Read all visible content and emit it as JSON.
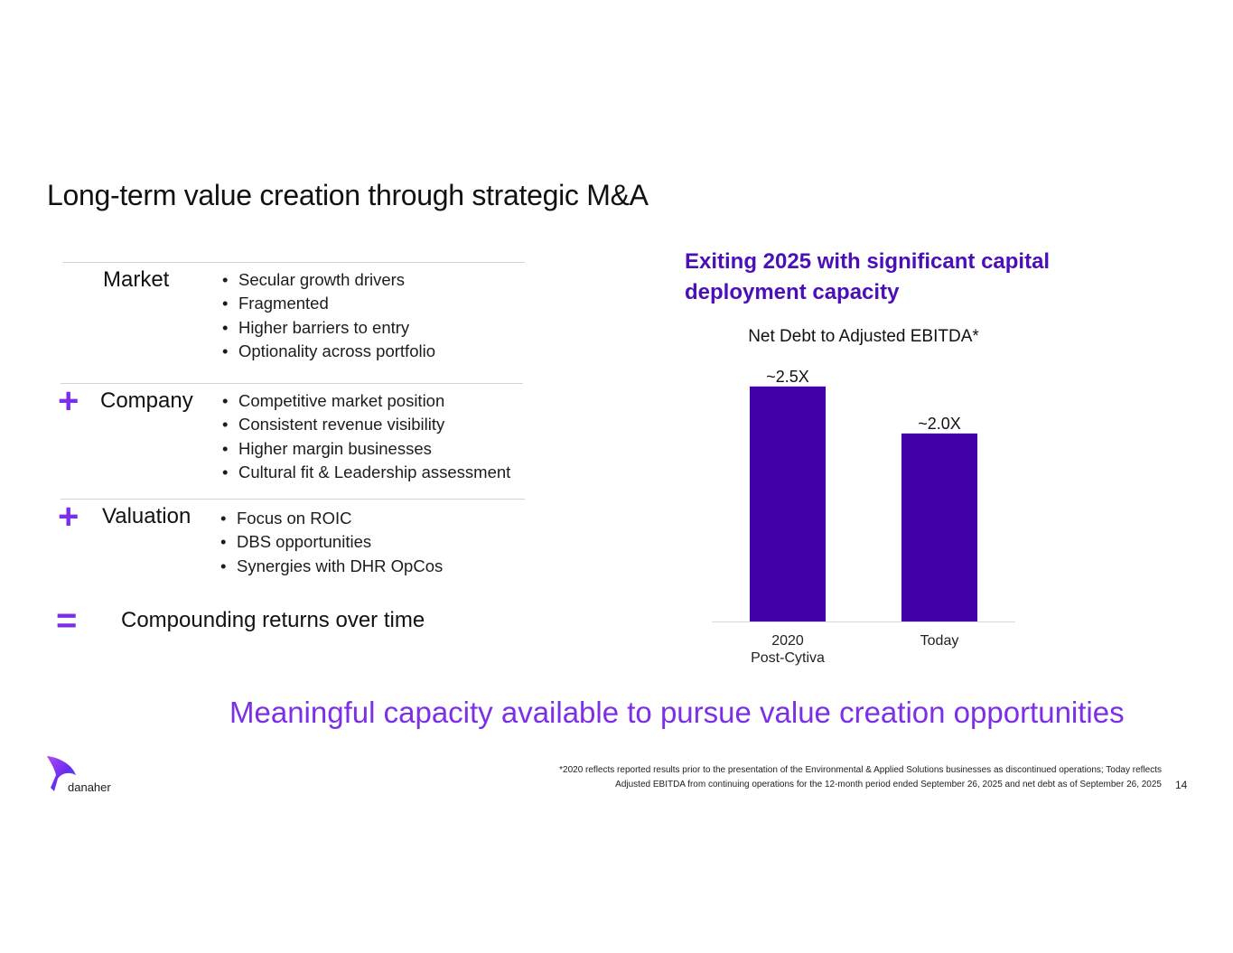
{
  "title": "Long-term value creation through strategic M&A",
  "framework": {
    "rows": [
      {
        "operator": "",
        "label": "Market",
        "bullets": [
          "Secular growth drivers",
          "Fragmented",
          "Higher barriers to entry",
          "Optionality across portfolio"
        ]
      },
      {
        "operator": "+",
        "label": "Company",
        "bullets": [
          "Competitive market position",
          "Consistent revenue visibility",
          "Higher margin businesses",
          "Cultural fit & Leadership assessment"
        ]
      },
      {
        "operator": "+",
        "label": "Valuation",
        "bullets": [
          "Focus on ROIC",
          "DBS opportunities",
          "Synergies with DHR OpCos"
        ]
      }
    ],
    "result_operator": "=",
    "result": "Compounding returns over time"
  },
  "headline": "Exiting 2025 with significant capital deployment capacity",
  "chart_data": {
    "type": "bar",
    "title": "Net Debt to Adjusted EBITDA*",
    "categories": [
      [
        "2020",
        "Post-Cytiva"
      ],
      [
        "Today"
      ]
    ],
    "values": [
      2.5,
      2.0
    ],
    "data_labels": [
      "~2.5X",
      "~2.0X"
    ],
    "ylim": [
      0,
      2.7
    ],
    "grid": false,
    "bar_color": "#4200a8"
  },
  "tagline": "Meaningful capacity available to pursue value creation opportunities",
  "footnote": {
    "line1": "*2020 reflects reported results prior to the presentation of the Environmental & Applied Solutions businesses as discontinued operations; Today reflects",
    "line2": "Adjusted EBITDA from continuing operations for the 12-month period ended September 26, 2025 and net debt as of September 26, 2025"
  },
  "page_number": "14",
  "logo": {
    "text": "danaher"
  },
  "colors": {
    "accent": "#7b2fe6",
    "headline": "#4a0fb8",
    "bar": "#4200a8"
  }
}
